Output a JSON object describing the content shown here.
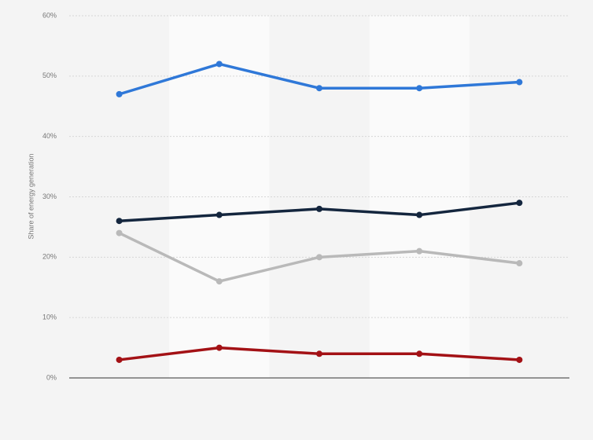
{
  "chart_data": {
    "type": "line",
    "y_label": "Share of energy generation",
    "categories": [
      null,
      null,
      null,
      null,
      null
    ],
    "series": [
      {
        "color": "#2f78d8",
        "values": [
          47,
          52,
          48,
          48,
          49
        ]
      },
      {
        "color": "#14263e",
        "values": [
          26,
          27,
          28,
          27,
          29
        ]
      },
      {
        "color": "#b9b9b9",
        "values": [
          24,
          16,
          20,
          21,
          19
        ]
      },
      {
        "color": "#a31115",
        "values": [
          3,
          5,
          4,
          4,
          3
        ]
      }
    ],
    "ylim": [
      0,
      60
    ],
    "yticks": [
      {
        "value": 0,
        "label": "0%"
      },
      {
        "value": 10,
        "label": "10%"
      },
      {
        "value": 20,
        "label": "20%"
      },
      {
        "value": 30,
        "label": "30%"
      },
      {
        "value": 40,
        "label": "40%"
      },
      {
        "value": 50,
        "label": "50%"
      },
      {
        "value": 60,
        "label": "60%"
      }
    ],
    "grid": true
  }
}
